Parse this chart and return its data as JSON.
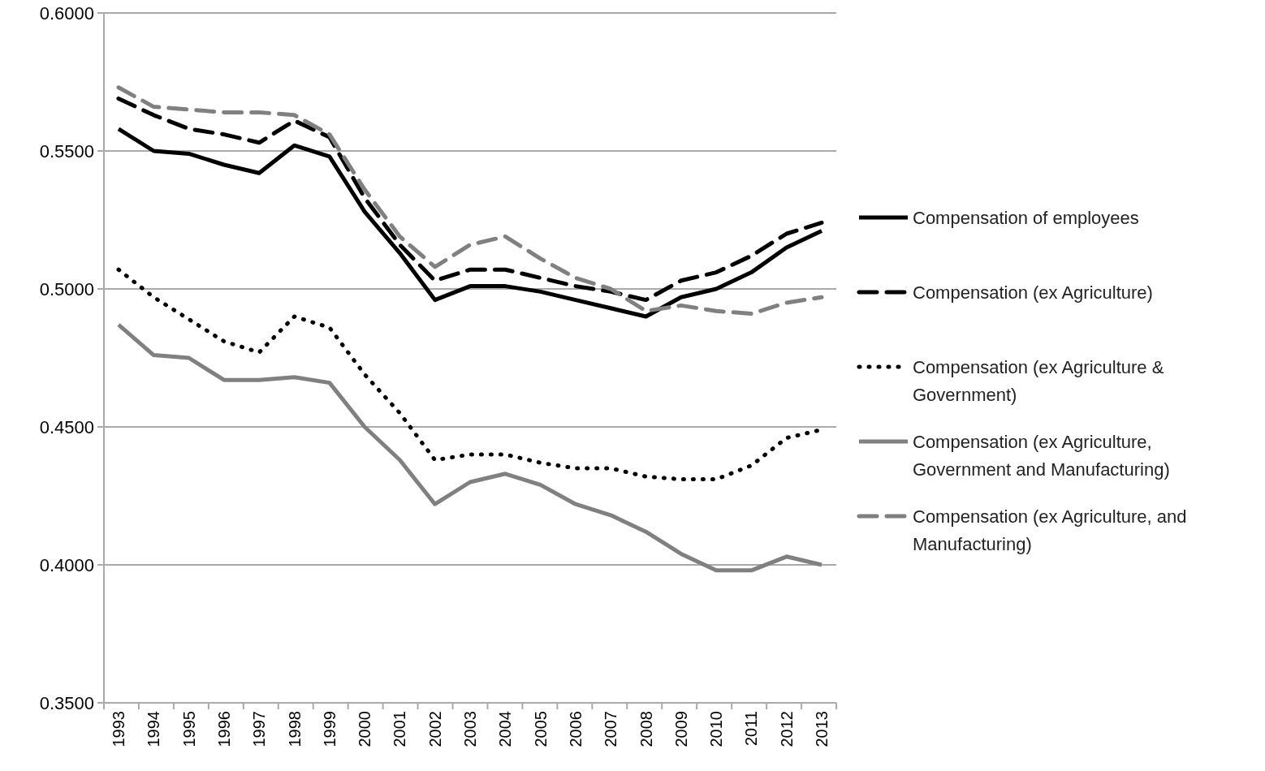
{
  "chart_data": {
    "type": "line",
    "categories": [
      "1993",
      "1994",
      "1995",
      "1996",
      "1997",
      "1998",
      "1999",
      "2000",
      "2001",
      "2002",
      "2003",
      "2004",
      "2005",
      "2006",
      "2007",
      "2008",
      "2009",
      "2010",
      "2011",
      "2012",
      "2013"
    ],
    "series": [
      {
        "name": "Compensation of employees",
        "color": "#000000",
        "line_style": "solid",
        "values": [
          0.558,
          0.55,
          0.549,
          0.545,
          0.542,
          0.552,
          0.548,
          0.528,
          0.513,
          0.496,
          0.501,
          0.501,
          0.499,
          0.496,
          0.493,
          0.49,
          0.497,
          0.5,
          0.506,
          0.515,
          0.521
        ]
      },
      {
        "name": "Compensation (ex Agriculture)",
        "color": "#000000",
        "line_style": "dashed",
        "values": [
          0.569,
          0.563,
          0.558,
          0.556,
          0.553,
          0.561,
          0.555,
          0.533,
          0.516,
          0.503,
          0.507,
          0.507,
          0.504,
          0.501,
          0.499,
          0.496,
          0.503,
          0.506,
          0.512,
          0.52,
          0.524
        ]
      },
      {
        "name": "Compensation (ex Agriculture & Government)",
        "color": "#000000",
        "line_style": "dotted",
        "values": [
          0.507,
          0.497,
          0.489,
          0.481,
          0.477,
          0.49,
          0.486,
          0.469,
          0.455,
          0.438,
          0.44,
          0.44,
          0.437,
          0.435,
          0.435,
          0.432,
          0.431,
          0.431,
          0.436,
          0.446,
          0.449
        ]
      },
      {
        "name": "Compensation (ex Agriculture, Government and Manufacturing)",
        "color": "#808080",
        "line_style": "solid",
        "values": [
          0.487,
          0.476,
          0.475,
          0.467,
          0.467,
          0.468,
          0.466,
          0.45,
          0.438,
          0.422,
          0.43,
          0.433,
          0.429,
          0.422,
          0.418,
          0.412,
          0.404,
          0.398,
          0.398,
          0.403,
          0.4
        ]
      },
      {
        "name": "Compensation (ex Agriculture, and Manufacturing)",
        "color": "#808080",
        "line_style": "dashed",
        "values": [
          0.573,
          0.566,
          0.565,
          0.564,
          0.564,
          0.563,
          0.556,
          0.536,
          0.519,
          0.508,
          0.516,
          0.519,
          0.511,
          0.504,
          0.5,
          0.492,
          0.494,
          0.492,
          0.491,
          0.495,
          0.497
        ]
      }
    ],
    "ylim": [
      0.35,
      0.6
    ],
    "yticks": [
      {
        "value": 0.35,
        "label": "0.3500"
      },
      {
        "value": 0.4,
        "label": "0.4000"
      },
      {
        "value": 0.45,
        "label": "0.4500"
      },
      {
        "value": 0.5,
        "label": "0.5000"
      },
      {
        "value": 0.55,
        "label": "0.5500"
      },
      {
        "value": 0.6,
        "label": "0.6000"
      }
    ],
    "grid": "y",
    "legend": "right"
  }
}
